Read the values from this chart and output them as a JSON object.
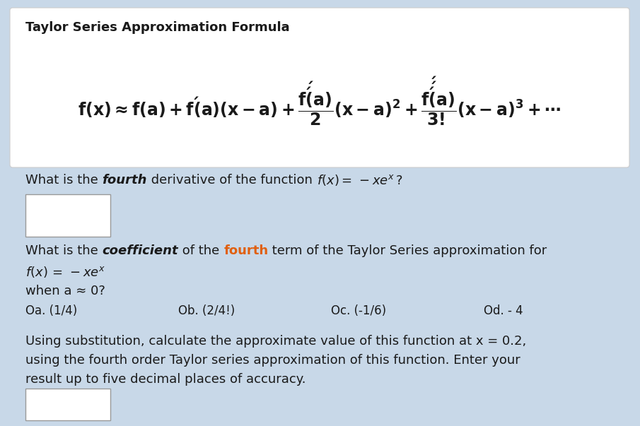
{
  "bg_color": "#c8d8e8",
  "white_box_color": "#ffffff",
  "title_text": "Taylor Series Approximation Formula",
  "title_fontsize": 13,
  "formula_fontsize": 17,
  "body_fontsize": 13,
  "option_fontsize": 12,
  "fourth_color": "#e06010",
  "text_color": "#1a1a1a",
  "box_edge_color": "#999999",
  "q1_text": "What is the ",
  "q1_fourth": "fourth",
  "q1_rest": " derivative of the function ",
  "q3_line1": "Using substitution, calculate the approximate value of this function at x ≈ 0.2,",
  "q3_line2": "using the fourth order Taylor series approximation of this function. Enter your",
  "q3_line3": "result up to five decimal places of accuracy."
}
